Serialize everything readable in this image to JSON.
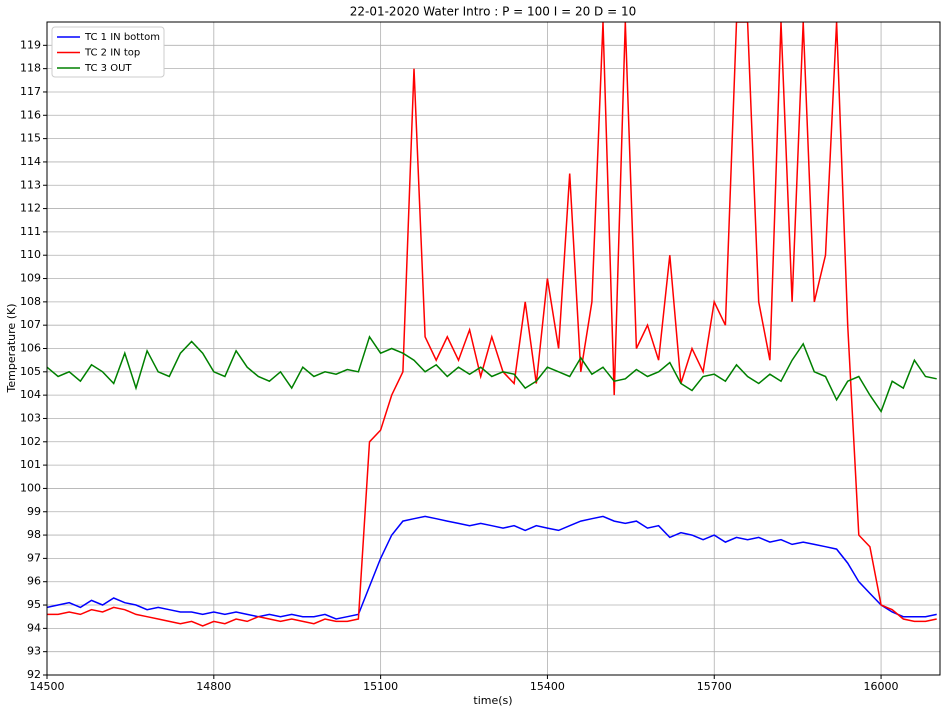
{
  "chart_data": {
    "type": "line",
    "title": "22-01-2020 Water Intro : P = 100 I = 20 D = 10",
    "x_label": "time(s)",
    "y_label": "Temperature (K)",
    "x": [
      14500,
      14520,
      14540,
      14560,
      14580,
      14600,
      14620,
      14640,
      14660,
      14680,
      14700,
      14720,
      14740,
      14760,
      14780,
      14800,
      14820,
      14840,
      14860,
      14880,
      14900,
      14920,
      14940,
      14960,
      14980,
      15000,
      15020,
      15040,
      15060,
      15080,
      15100,
      15120,
      15140,
      15160,
      15180,
      15200,
      15220,
      15240,
      15260,
      15280,
      15300,
      15320,
      15340,
      15360,
      15380,
      15400,
      15420,
      15440,
      15460,
      15480,
      15500,
      15520,
      15540,
      15560,
      15580,
      15600,
      15620,
      15640,
      15660,
      15680,
      15700,
      15720,
      15740,
      15760,
      15780,
      15800,
      15820,
      15840,
      15860,
      15880,
      15900,
      15920,
      15940,
      15960,
      15980,
      16000,
      16020,
      16040,
      16060,
      16080,
      16100
    ],
    "series": [
      {
        "name": "TC 1 IN bottom",
        "color": "#0000ff",
        "values": [
          94.9,
          95.0,
          95.1,
          94.9,
          95.2,
          95.0,
          95.3,
          95.1,
          95.0,
          94.8,
          94.9,
          94.8,
          94.7,
          94.7,
          94.6,
          94.7,
          94.6,
          94.7,
          94.6,
          94.5,
          94.6,
          94.5,
          94.6,
          94.5,
          94.5,
          94.6,
          94.4,
          94.5,
          94.6,
          95.8,
          97.0,
          98.0,
          98.6,
          98.7,
          98.8,
          98.7,
          98.6,
          98.5,
          98.4,
          98.5,
          98.4,
          98.3,
          98.4,
          98.2,
          98.4,
          98.3,
          98.2,
          98.4,
          98.6,
          98.7,
          98.8,
          98.6,
          98.5,
          98.6,
          98.3,
          98.4,
          97.9,
          98.1,
          98.0,
          97.8,
          98.0,
          97.7,
          97.9,
          97.8,
          97.9,
          97.7,
          97.8,
          97.6,
          97.7,
          97.6,
          97.5,
          97.4,
          96.8,
          96.0,
          95.5,
          95.0,
          94.7,
          94.5,
          94.5,
          94.5,
          94.6
        ]
      },
      {
        "name": "TC 2 IN top",
        "color": "#ff0000",
        "values": [
          94.6,
          94.6,
          94.7,
          94.6,
          94.8,
          94.7,
          94.9,
          94.8,
          94.6,
          94.5,
          94.4,
          94.3,
          94.2,
          94.3,
          94.1,
          94.3,
          94.2,
          94.4,
          94.3,
          94.5,
          94.4,
          94.3,
          94.4,
          94.3,
          94.2,
          94.4,
          94.3,
          94.3,
          94.4,
          102,
          102.5,
          104,
          105,
          118,
          106.5,
          105.5,
          106.5,
          105.5,
          106.8,
          104.8,
          106.5,
          105,
          104.5,
          108,
          104.5,
          109,
          106,
          113.5,
          105,
          108,
          120,
          104,
          120,
          106,
          107,
          105.5,
          110,
          104.5,
          106,
          105,
          108,
          107,
          120,
          120,
          108,
          105.5,
          120,
          108,
          120,
          108,
          110,
          120,
          107,
          98,
          97.5,
          95.0,
          94.8,
          94.4,
          94.3,
          94.3,
          94.4
        ]
      },
      {
        "name": "TC 3 OUT",
        "color": "#008000",
        "values": [
          105.2,
          104.8,
          105.0,
          104.6,
          105.3,
          105.0,
          104.5,
          105.8,
          104.3,
          105.9,
          105.0,
          104.8,
          105.8,
          106.3,
          105.8,
          105.0,
          104.8,
          105.9,
          105.2,
          104.8,
          104.6,
          105.0,
          104.3,
          105.2,
          104.8,
          105.0,
          104.9,
          105.1,
          105.0,
          106.5,
          105.8,
          106.0,
          105.8,
          105.5,
          105.0,
          105.3,
          104.8,
          105.2,
          104.9,
          105.2,
          104.8,
          105.0,
          104.9,
          104.3,
          104.6,
          105.2,
          105.0,
          104.8,
          105.6,
          104.9,
          105.2,
          104.6,
          104.7,
          105.1,
          104.8,
          105.0,
          105.4,
          104.5,
          104.2,
          104.8,
          104.9,
          104.6,
          105.3,
          104.8,
          104.5,
          104.9,
          104.6,
          105.5,
          106.2,
          105.0,
          104.8,
          103.8,
          104.6,
          104.8,
          104.0,
          103.3,
          104.6,
          104.3,
          105.5,
          104.8,
          104.7
        ]
      }
    ],
    "xlim": [
      14500,
      16106
    ],
    "xticks": [
      14500,
      14800,
      15100,
      15400,
      15700,
      16000
    ],
    "ylim": [
      92,
      120
    ],
    "yticks": [
      92,
      93,
      94,
      95,
      96,
      97,
      98,
      99,
      100,
      101,
      102,
      103,
      104,
      105,
      106,
      107,
      108,
      109,
      110,
      111,
      112,
      113,
      114,
      115,
      116,
      117,
      118,
      119
    ],
    "grid": true,
    "legend": "upper left"
  }
}
